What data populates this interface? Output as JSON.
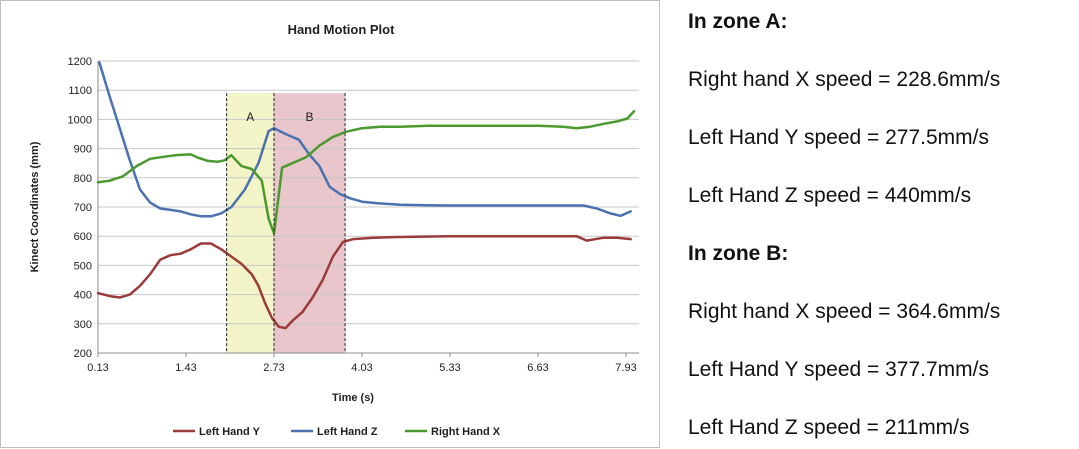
{
  "chart_data": {
    "type": "line",
    "title": "Hand Motion Plot",
    "xlabel": "Time (s)",
    "ylabel": "Kinect Coordinates (mm)",
    "xlim": [
      0.13,
      8.1
    ],
    "ylim": [
      200,
      1200
    ],
    "x_ticks": [
      0.13,
      1.43,
      2.73,
      4.03,
      5.33,
      6.63,
      7.93
    ],
    "x_tick_labels": [
      "0.13",
      "1.43",
      "2.73",
      "4.03",
      "5.33",
      "6.63",
      "7.93"
    ],
    "y_ticks": [
      200,
      300,
      400,
      500,
      600,
      700,
      800,
      900,
      1000,
      1100,
      1200
    ],
    "y_tick_labels": [
      "200",
      "300",
      "400",
      "500",
      "600",
      "700",
      "800",
      "900",
      "1000",
      "1100",
      "1200"
    ],
    "grid": "horizontal",
    "legend_position": "bottom",
    "zones": [
      {
        "label": "A",
        "start": 2.03,
        "end": 2.73,
        "color": "#f3f4c8"
      },
      {
        "label": "B",
        "start": 2.73,
        "end": 3.78,
        "color": "#e9c6cc"
      }
    ],
    "series": [
      {
        "name": "Left Hand Y",
        "color": "#9b3b3b",
        "x": [
          0.13,
          0.3,
          0.45,
          0.6,
          0.75,
          0.9,
          1.05,
          1.2,
          1.35,
          1.5,
          1.65,
          1.8,
          1.95,
          2.1,
          2.25,
          2.4,
          2.5,
          2.6,
          2.7,
          2.8,
          2.9,
          3.0,
          3.15,
          3.3,
          3.45,
          3.6,
          3.75,
          3.9,
          4.2,
          4.5,
          4.8,
          5.33,
          5.8,
          6.3,
          6.63,
          7.0,
          7.2,
          7.35,
          7.6,
          7.8,
          8.0
        ],
        "y": [
          405,
          395,
          390,
          400,
          430,
          470,
          520,
          535,
          540,
          555,
          575,
          575,
          555,
          530,
          505,
          470,
          430,
          370,
          320,
          290,
          285,
          310,
          340,
          390,
          450,
          530,
          580,
          590,
          595,
          597,
          598,
          600,
          600,
          600,
          600,
          600,
          600,
          585,
          595,
          595,
          590
        ]
      },
      {
        "name": "Left Hand Z",
        "color": "#4a72b0",
        "x": [
          0.15,
          0.3,
          0.45,
          0.6,
          0.75,
          0.9,
          1.05,
          1.2,
          1.35,
          1.5,
          1.65,
          1.8,
          1.95,
          2.1,
          2.3,
          2.5,
          2.65,
          2.73,
          2.9,
          3.1,
          3.25,
          3.4,
          3.55,
          3.7,
          3.85,
          4.03,
          4.3,
          4.6,
          5.0,
          5.33,
          5.8,
          6.3,
          6.63,
          7.0,
          7.3,
          7.5,
          7.7,
          7.85,
          8.0
        ],
        "y": [
          1195,
          1080,
          970,
          860,
          760,
          715,
          695,
          690,
          685,
          675,
          668,
          668,
          678,
          700,
          760,
          850,
          960,
          970,
          950,
          930,
          880,
          840,
          770,
          745,
          730,
          718,
          712,
          708,
          706,
          705,
          705,
          705,
          705,
          705,
          705,
          695,
          678,
          670,
          685
        ]
      },
      {
        "name": "Right Hand X",
        "color": "#4a9a2e",
        "x": [
          0.13,
          0.3,
          0.5,
          0.7,
          0.9,
          1.1,
          1.3,
          1.5,
          1.6,
          1.75,
          1.9,
          2.0,
          2.1,
          2.25,
          2.4,
          2.55,
          2.65,
          2.73,
          2.85,
          3.0,
          3.2,
          3.4,
          3.6,
          3.8,
          4.03,
          4.3,
          4.6,
          5.0,
          5.33,
          5.8,
          6.3,
          6.63,
          7.0,
          7.2,
          7.4,
          7.6,
          7.8,
          7.95,
          8.05
        ],
        "y": [
          785,
          790,
          805,
          840,
          865,
          872,
          878,
          880,
          870,
          858,
          855,
          860,
          877,
          840,
          830,
          790,
          660,
          610,
          835,
          850,
          870,
          910,
          940,
          958,
          970,
          975,
          975,
          978,
          978,
          978,
          978,
          978,
          975,
          970,
          975,
          985,
          993,
          1003,
          1028
        ]
      }
    ]
  },
  "summary": {
    "zone_a_heading": "In zone A:",
    "zone_a_lines": [
      "Right hand X speed = 228.6mm/s",
      "Left Hand Y speed = 277.5mm/s",
      "Left Hand Z speed = 440mm/s"
    ],
    "zone_b_heading": "In zone B:",
    "zone_b_lines": [
      "Right hand X speed = 364.6mm/s",
      "Left Hand Y speed = 377.7mm/s",
      "Left Hand Z speed = 211mm/s"
    ]
  }
}
